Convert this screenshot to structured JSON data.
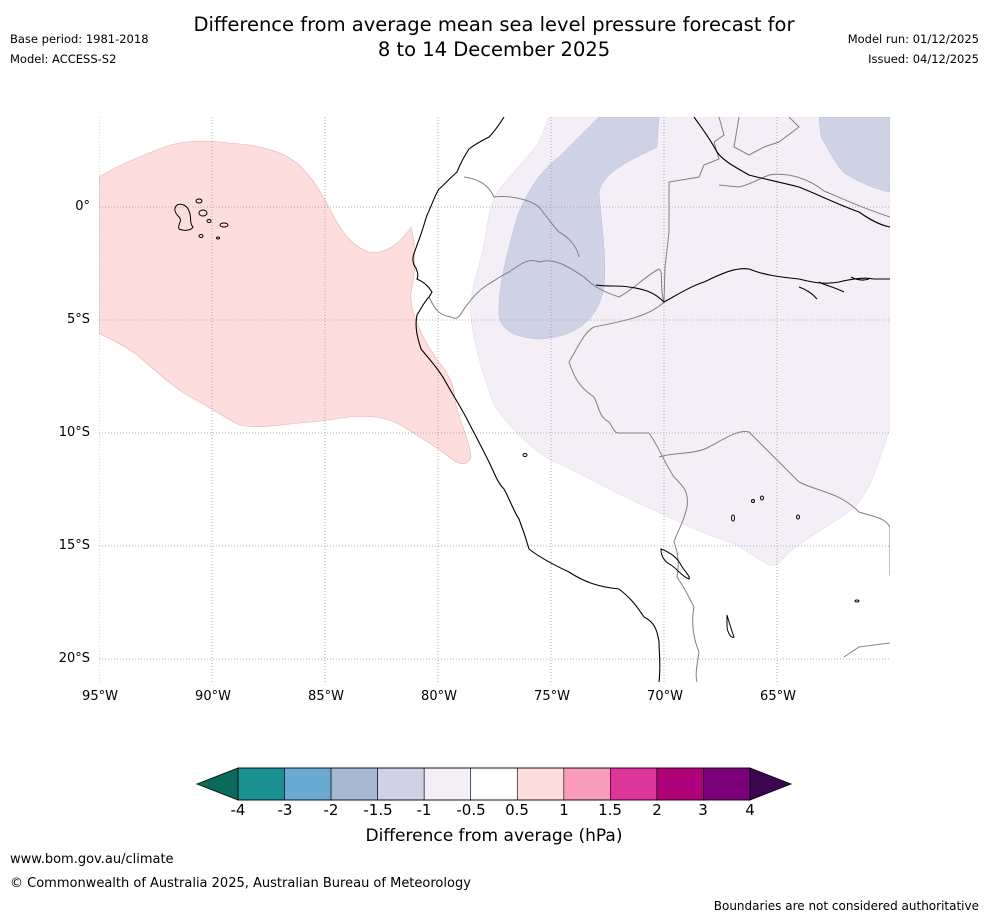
{
  "header": {
    "title_line1": "Difference from average mean sea level pressure forecast for",
    "title_line2": "8 to 14 December 2025",
    "base_period": "Base period: 1981-2018",
    "model": "Model: ACCESS-S2",
    "model_run": "Model run: 01/12/2025",
    "issued": "Issued: 04/12/2025"
  },
  "map": {
    "region": "Western South America and eastern tropical Pacific",
    "lat_labels": [
      "0°",
      "5°S",
      "10°S",
      "15°S",
      "20°S"
    ],
    "lon_labels": [
      "95°W",
      "90°W",
      "85°W",
      "80°W",
      "75°W",
      "70°W",
      "65°W"
    ],
    "colors": {
      "coast": "#000000",
      "border": "#808080",
      "grid": "#999999",
      "anomaly_pos_0_5_to_1": "#fddedd",
      "anomaly_neg_1_to_0_5": "#f4eff7",
      "anomaly_neg_1_5_to_1": "#cfd1e5"
    }
  },
  "colorbar": {
    "label": "Difference from average (hPa)",
    "ticks": [
      "-4",
      "-3",
      "-2",
      "-1.5",
      "-1",
      "-0.5",
      "0.5",
      "1",
      "1.5",
      "2",
      "3",
      "4"
    ],
    "low_extend_color": "#0b6a5c",
    "high_extend_color": "#3c0550",
    "colors": [
      "#1a9093",
      "#6aaad2",
      "#a7b8d5",
      "#cfd1e5",
      "#f4eff7",
      "#ffffff",
      "#fddedd",
      "#f99cbc",
      "#df359b",
      "#b0007a",
      "#7b007a"
    ]
  },
  "footer": {
    "website": "www.bom.gov.au/climate",
    "copyright": "© Commonwealth of Australia 2025, Australian Bureau of Meteorology",
    "disclaimer": "Boundaries are not considered authoritative"
  }
}
